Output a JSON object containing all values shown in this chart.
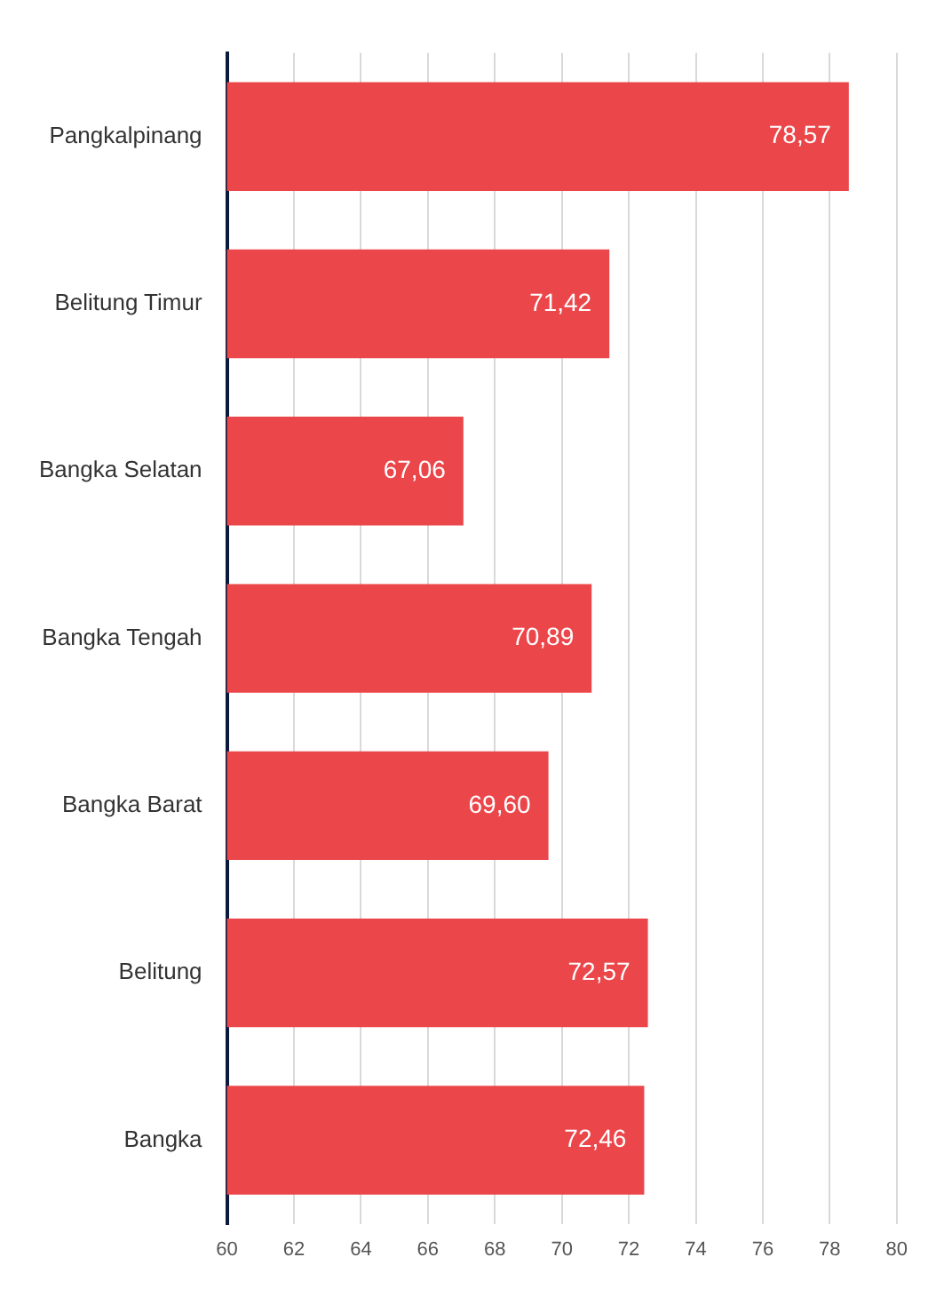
{
  "chart_data": {
    "type": "bar",
    "orientation": "horizontal",
    "categories": [
      "Pangkalpinang",
      "Belitung Timur",
      "Bangka Selatan",
      "Bangka Tengah",
      "Bangka Barat",
      "Belitung",
      "Bangka"
    ],
    "values": [
      78.57,
      71.42,
      67.06,
      70.89,
      69.6,
      72.57,
      72.46
    ],
    "value_labels": [
      "78,57",
      "71,42",
      "67,06",
      "70,89",
      "69,60",
      "72,57",
      "72,46"
    ],
    "color": "#eb474b",
    "xlim": [
      60,
      80
    ],
    "xticks": [
      60,
      62,
      64,
      66,
      68,
      70,
      72,
      74,
      76,
      78,
      80
    ],
    "grid": "x",
    "legend": false
  }
}
